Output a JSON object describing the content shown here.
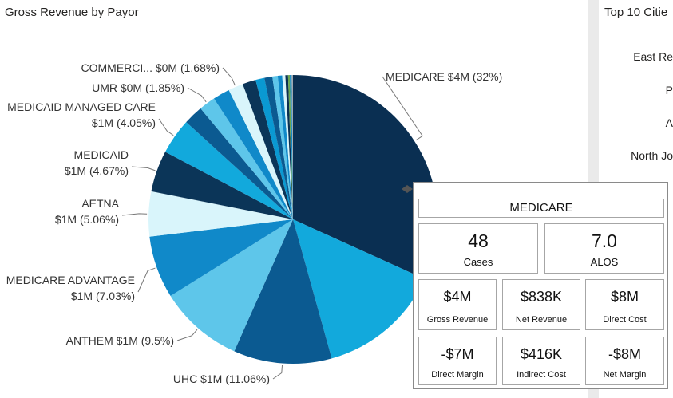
{
  "left_panel": {
    "title": "Gross Revenue by Payor"
  },
  "right_panel": {
    "title": "Top 10 Citie",
    "rows": [
      "East Re",
      "P",
      "A",
      "North Jo"
    ]
  },
  "colors": {
    "c1": "#0a2f52",
    "c2": "#12a9dc",
    "c3": "#0b5a91",
    "c4": "#5ec6ea",
    "c5": "#1089c9",
    "c6": "#d9f5fb",
    "c7": "#0b3558",
    "c8": "#0a99d2"
  },
  "chart_data": {
    "type": "pie",
    "title": "Gross Revenue by Payor",
    "slices": [
      {
        "name": "MEDICARE",
        "label_lines": [
          "MEDICARE $4M (32%)"
        ],
        "value": 32.0,
        "color": "#0a2f52"
      },
      {
        "name": "",
        "label_lines": [],
        "value": 14.0,
        "color": "#12a9dc"
      },
      {
        "name": "UHC",
        "label_lines": [
          "UHC $1M (11.06%)"
        ],
        "value": 11.06,
        "color": "#0b5a91"
      },
      {
        "name": "ANTHEM",
        "label_lines": [
          "ANTHEM $1M (9.5%)"
        ],
        "value": 9.5,
        "color": "#5ec6ea"
      },
      {
        "name": "MEDICARE ADVANTAGE",
        "label_lines": [
          "MEDICARE ADVANTAGE",
          "$1M (7.03%)"
        ],
        "value": 7.03,
        "color": "#1089c9"
      },
      {
        "name": "AETNA",
        "label_lines": [
          "AETNA",
          "$1M (5.06%)"
        ],
        "value": 5.06,
        "color": "#d9f5fb"
      },
      {
        "name": "MEDICAID",
        "label_lines": [
          "MEDICAID",
          "$1M (4.67%)"
        ],
        "value": 4.67,
        "color": "#0b3558"
      },
      {
        "name": "MEDICAID MANAGED CARE",
        "label_lines": [
          "MEDICAID MANAGED CARE",
          "$1M (4.05%)"
        ],
        "value": 4.05,
        "color": "#12a9dc"
      },
      {
        "name": "",
        "label_lines": [],
        "value": 2.2,
        "color": "#0b5a91"
      },
      {
        "name": "UMR",
        "label_lines": [
          "UMR $0M (1.85%)"
        ],
        "value": 1.85,
        "color": "#5ec6ea"
      },
      {
        "name": "",
        "label_lines": [],
        "value": 1.9,
        "color": "#1089c9"
      },
      {
        "name": "COMMERCI...",
        "label_lines": [
          "COMMERCI... $0M (1.68%)"
        ],
        "value": 1.68,
        "color": "#d9f5fb"
      },
      {
        "name": "",
        "label_lines": [],
        "value": 1.5,
        "color": "#0b3558"
      },
      {
        "name": "",
        "label_lines": [],
        "value": 1.0,
        "color": "#0a99d2"
      },
      {
        "name": "",
        "label_lines": [],
        "value": 0.9,
        "color": "#0b5a91"
      },
      {
        "name": "",
        "label_lines": [],
        "value": 0.6,
        "color": "#5ec6ea"
      },
      {
        "name": "",
        "label_lines": [],
        "value": 0.5,
        "color": "#1089c9"
      },
      {
        "name": "",
        "label_lines": [],
        "value": 0.35,
        "color": "#d9f5fb"
      },
      {
        "name": "",
        "label_lines": [],
        "value": 0.3,
        "color": "#0a2f52"
      },
      {
        "name": "",
        "label_lines": [],
        "value": 0.2,
        "color": "#6aa84f"
      },
      {
        "name": "",
        "label_lines": [],
        "value": 0.2,
        "color": "#1089c9"
      },
      {
        "name": "",
        "label_lines": [],
        "value": 0.15,
        "color": "#9fa8b0"
      }
    ]
  },
  "tooltip": {
    "title": "MEDICARE",
    "cases": {
      "value": "48",
      "label": "Cases"
    },
    "alos": {
      "value": "7.0",
      "label": "ALOS"
    },
    "gross_revenue": {
      "value": "$4M",
      "label": "Gross Revenue"
    },
    "net_revenue": {
      "value": "$838K",
      "label": "Net Revenue"
    },
    "direct_cost": {
      "value": "$8M",
      "label": "Direct Cost"
    },
    "direct_margin": {
      "value": "-$7M",
      "label": "Direct Margin"
    },
    "indirect_cost": {
      "value": "$416K",
      "label": "Indirect Cost"
    },
    "net_margin": {
      "value": "-$8M",
      "label": "Net Margin"
    }
  }
}
